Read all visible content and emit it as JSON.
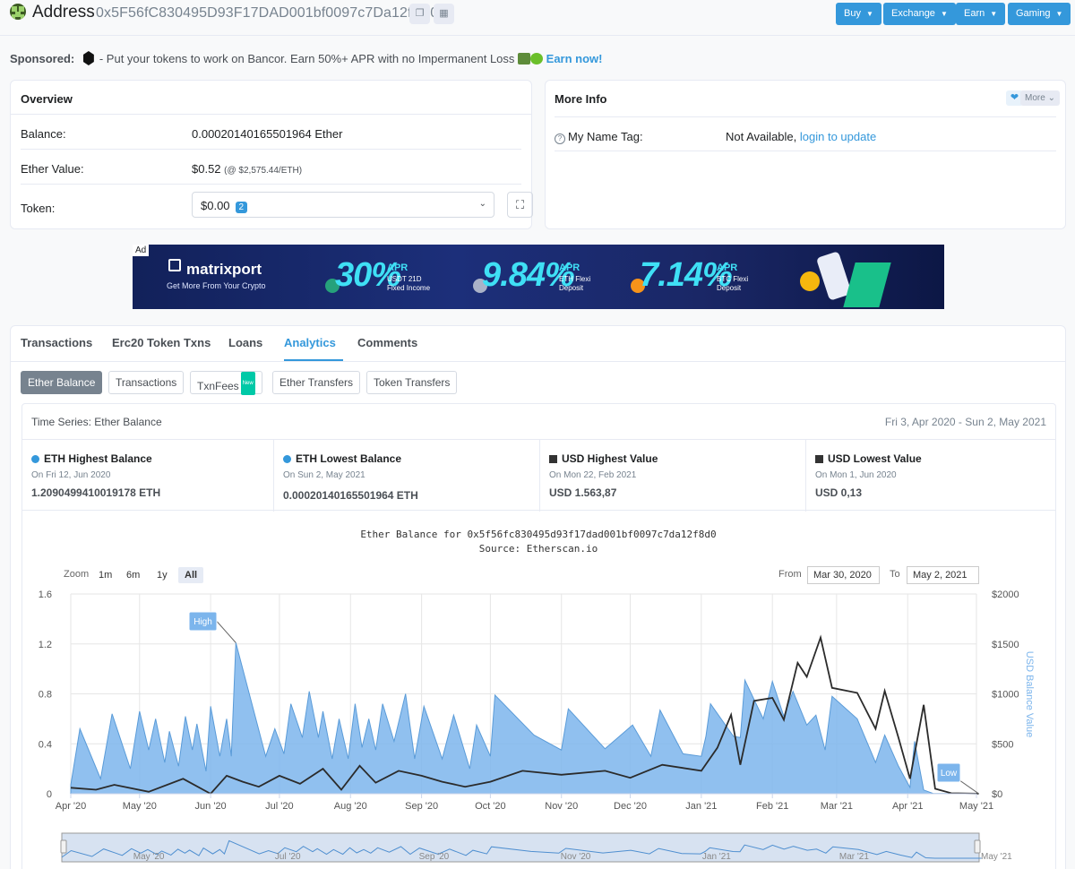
{
  "header": {
    "title": "Address",
    "address": "0x5F56fC830495D93F17DAD001bf0097c7Da12f8D0",
    "nav": [
      "Buy",
      "Exchange",
      "Earn",
      "Gaming"
    ]
  },
  "sponsor": {
    "label": "Sponsored:",
    "text": "- Put your tokens to work on Bancor. Earn 50%+ APR with no Impermanent Loss",
    "cta": "Earn now!"
  },
  "overview": {
    "title": "Overview",
    "balance_label": "Balance:",
    "balance_value": "0.00020140165501964 Ether",
    "ether_value_label": "Ether Value:",
    "ether_value": "$0.52",
    "ether_rate": "(@ $2,575.44/ETH)",
    "token_label": "Token:",
    "token_value": "$0.00",
    "token_count": "2"
  },
  "more_info": {
    "title": "More Info",
    "more_btn": "More",
    "name_tag_label": "My Name Tag:",
    "name_tag_value": "Not Available,",
    "name_tag_link": "login to update"
  },
  "ad": {
    "tag": "Ad",
    "brand": "matrixport",
    "tagline": "Get More From Your Crypto",
    "offers": [
      {
        "pct": "30%",
        "apr": "APR",
        "sub1": "USDT 21D",
        "sub2": "Fixed Income"
      },
      {
        "pct": "9.84%",
        "apr": "APR",
        "sub1": "ETH Flexi",
        "sub2": "Deposit"
      },
      {
        "pct": "7.14%",
        "apr": "APR",
        "sub1": "BTC Flexi",
        "sub2": "Deposit"
      }
    ]
  },
  "tabs": [
    "Transactions",
    "Erc20 Token Txns",
    "Loans",
    "Analytics",
    "Comments"
  ],
  "subtabs": [
    "Ether Balance",
    "Transactions",
    "TxnFees",
    "Ether Transfers",
    "Token Transfers"
  ],
  "subtab_new_badge": "New",
  "timeseries": {
    "title": "Time Series: Ether Balance",
    "range": "Fri 3, Apr 2020 - Sun 2, May 2021"
  },
  "stats": [
    {
      "heading": "ETH Highest Balance",
      "date": "On Fri 12, Jun 2020",
      "value": "1.2090499410019178 ETH",
      "marker": "dot"
    },
    {
      "heading": "ETH Lowest Balance",
      "date": "On Sun 2, May 2021",
      "value": "0.00020140165501964 ETH",
      "marker": "dot"
    },
    {
      "heading": "USD Highest Value",
      "date": "On Mon 22, Feb 2021",
      "value": "USD 1.563,87",
      "marker": "square"
    },
    {
      "heading": "USD Lowest Value",
      "date": "On Mon 1, Jun 2020",
      "value": "USD 0,13",
      "marker": "square"
    }
  ],
  "chart_controls": {
    "zoom_label": "Zoom",
    "zoom_options": [
      "1m",
      "6m",
      "1y",
      "All"
    ],
    "zoom_selected": "All",
    "from_label": "From",
    "from_value": "Mar 30, 2020",
    "to_label": "To",
    "to_value": "May 2, 2021"
  },
  "chart_data": {
    "type": "area",
    "title": "Ether Balance for 0x5f56fc830495d93f17dad001bf0097c7da12f8d0",
    "subtitle": "Source: Etherscan.io",
    "x_ticks": [
      "Apr '20",
      "May '20",
      "Jun '20",
      "Jul '20",
      "Aug '20",
      "Sep '20",
      "Oct '20",
      "Nov '20",
      "Dec '20",
      "Jan '21",
      "Feb '21",
      "Mar '21",
      "Apr '21",
      "May '21"
    ],
    "y_left_ticks": [
      "0",
      "0.4",
      "0.8",
      "1.2",
      "1.6"
    ],
    "y_left_range": [
      0,
      1.6
    ],
    "y_right_ticks": [
      "$0",
      "$500",
      "$1000",
      "$1500",
      "$2000"
    ],
    "y_right_range": [
      0,
      2000
    ],
    "y_right_label": "USD Balance Value",
    "navigator_ticks": [
      "May '20",
      "Jul '20",
      "Sep '20",
      "Nov '20",
      "Jan '21",
      "Mar '21",
      "May '21"
    ],
    "annotations": [
      {
        "label": "High",
        "x": "2020-06-12",
        "y": 1.209
      },
      {
        "label": "Low",
        "x": "2021-05-02",
        "y": 0.0002
      }
    ],
    "series": [
      {
        "name": "Ether Balance",
        "axis": "left",
        "color": "#7cb5ec",
        "points": [
          [
            "2020-04-01",
            0.07
          ],
          [
            "2020-04-05",
            0.52
          ],
          [
            "2020-04-14",
            0.12
          ],
          [
            "2020-04-19",
            0.64
          ],
          [
            "2020-04-27",
            0.2
          ],
          [
            "2020-05-01",
            0.66
          ],
          [
            "2020-05-05",
            0.35
          ],
          [
            "2020-05-08",
            0.6
          ],
          [
            "2020-05-12",
            0.25
          ],
          [
            "2020-05-14",
            0.5
          ],
          [
            "2020-05-18",
            0.22
          ],
          [
            "2020-05-21",
            0.62
          ],
          [
            "2020-05-24",
            0.35
          ],
          [
            "2020-05-26",
            0.56
          ],
          [
            "2020-05-30",
            0.18
          ],
          [
            "2020-06-01",
            0.7
          ],
          [
            "2020-06-05",
            0.3
          ],
          [
            "2020-06-08",
            0.6
          ],
          [
            "2020-06-10",
            0.3
          ],
          [
            "2020-06-12",
            1.209
          ],
          [
            "2020-06-25",
            0.3
          ],
          [
            "2020-06-29",
            0.52
          ],
          [
            "2020-07-03",
            0.32
          ],
          [
            "2020-07-06",
            0.72
          ],
          [
            "2020-07-11",
            0.45
          ],
          [
            "2020-07-14",
            0.82
          ],
          [
            "2020-07-18",
            0.45
          ],
          [
            "2020-07-20",
            0.66
          ],
          [
            "2020-07-24",
            0.28
          ],
          [
            "2020-07-27",
            0.6
          ],
          [
            "2020-07-31",
            0.28
          ],
          [
            "2020-08-03",
            0.72
          ],
          [
            "2020-08-06",
            0.37
          ],
          [
            "2020-08-09",
            0.6
          ],
          [
            "2020-08-12",
            0.35
          ],
          [
            "2020-08-15",
            0.72
          ],
          [
            "2020-08-20",
            0.42
          ],
          [
            "2020-08-25",
            0.8
          ],
          [
            "2020-08-29",
            0.28
          ],
          [
            "2020-09-02",
            0.7
          ],
          [
            "2020-09-10",
            0.28
          ],
          [
            "2020-09-15",
            0.63
          ],
          [
            "2020-09-22",
            0.2
          ],
          [
            "2020-09-25",
            0.55
          ],
          [
            "2020-10-01",
            0.3
          ],
          [
            "2020-10-03",
            0.79
          ],
          [
            "2020-10-20",
            0.47
          ],
          [
            "2020-11-01",
            0.35
          ],
          [
            "2020-11-04",
            0.68
          ],
          [
            "2020-11-20",
            0.36
          ],
          [
            "2020-12-02",
            0.55
          ],
          [
            "2020-12-10",
            0.3
          ],
          [
            "2020-12-14",
            0.67
          ],
          [
            "2020-12-24",
            0.32
          ],
          [
            "2021-01-01",
            0.3
          ],
          [
            "2021-01-03",
            0.46
          ],
          [
            "2021-01-05",
            0.72
          ],
          [
            "2021-01-15",
            0.46
          ],
          [
            "2021-01-18",
            0.45
          ],
          [
            "2021-01-20",
            0.91
          ],
          [
            "2021-01-28",
            0.6
          ],
          [
            "2021-02-01",
            0.9
          ],
          [
            "2021-02-06",
            0.62
          ],
          [
            "2021-02-10",
            0.82
          ],
          [
            "2021-02-16",
            0.55
          ],
          [
            "2021-02-20",
            0.63
          ],
          [
            "2021-02-24",
            0.35
          ],
          [
            "2021-02-27",
            0.78
          ],
          [
            "2021-03-10",
            0.6
          ],
          [
            "2021-03-18",
            0.25
          ],
          [
            "2021-03-22",
            0.47
          ],
          [
            "2021-03-28",
            0.22
          ],
          [
            "2021-04-02",
            0.05
          ],
          [
            "2021-04-04",
            0.42
          ],
          [
            "2021-04-08",
            0.03
          ],
          [
            "2021-04-12",
            0.003
          ],
          [
            "2021-05-02",
            0.0002
          ]
        ]
      },
      {
        "name": "USD Balance Value",
        "axis": "right",
        "color": "#2b2b2b",
        "points": [
          [
            "2020-04-01",
            60
          ],
          [
            "2020-04-12",
            40
          ],
          [
            "2020-04-20",
            90
          ],
          [
            "2020-05-05",
            20
          ],
          [
            "2020-05-20",
            150
          ],
          [
            "2020-06-01",
            0.13
          ],
          [
            "2020-06-08",
            180
          ],
          [
            "2020-06-15",
            120
          ],
          [
            "2020-06-22",
            70
          ],
          [
            "2020-07-01",
            180
          ],
          [
            "2020-07-10",
            100
          ],
          [
            "2020-07-20",
            250
          ],
          [
            "2020-07-28",
            40
          ],
          [
            "2020-08-05",
            280
          ],
          [
            "2020-08-12",
            110
          ],
          [
            "2020-08-22",
            230
          ],
          [
            "2020-09-01",
            180
          ],
          [
            "2020-09-10",
            120
          ],
          [
            "2020-09-20",
            70
          ],
          [
            "2020-10-01",
            120
          ],
          [
            "2020-10-15",
            230
          ],
          [
            "2020-11-01",
            190
          ],
          [
            "2020-11-20",
            230
          ],
          [
            "2020-12-01",
            160
          ],
          [
            "2020-12-15",
            290
          ],
          [
            "2021-01-01",
            230
          ],
          [
            "2021-01-08",
            460
          ],
          [
            "2021-01-14",
            790
          ],
          [
            "2021-01-18",
            290
          ],
          [
            "2021-01-24",
            930
          ],
          [
            "2021-02-01",
            960
          ],
          [
            "2021-02-06",
            740
          ],
          [
            "2021-02-12",
            1310
          ],
          [
            "2021-02-16",
            1170
          ],
          [
            "2021-02-22",
            1563.87
          ],
          [
            "2021-02-27",
            1060
          ],
          [
            "2021-03-10",
            1010
          ],
          [
            "2021-03-18",
            650
          ],
          [
            "2021-03-22",
            1030
          ],
          [
            "2021-03-28",
            560
          ],
          [
            "2021-04-02",
            150
          ],
          [
            "2021-04-08",
            890
          ],
          [
            "2021-04-13",
            50
          ],
          [
            "2021-04-20",
            5
          ],
          [
            "2021-05-02",
            0.52
          ]
        ]
      }
    ]
  }
}
